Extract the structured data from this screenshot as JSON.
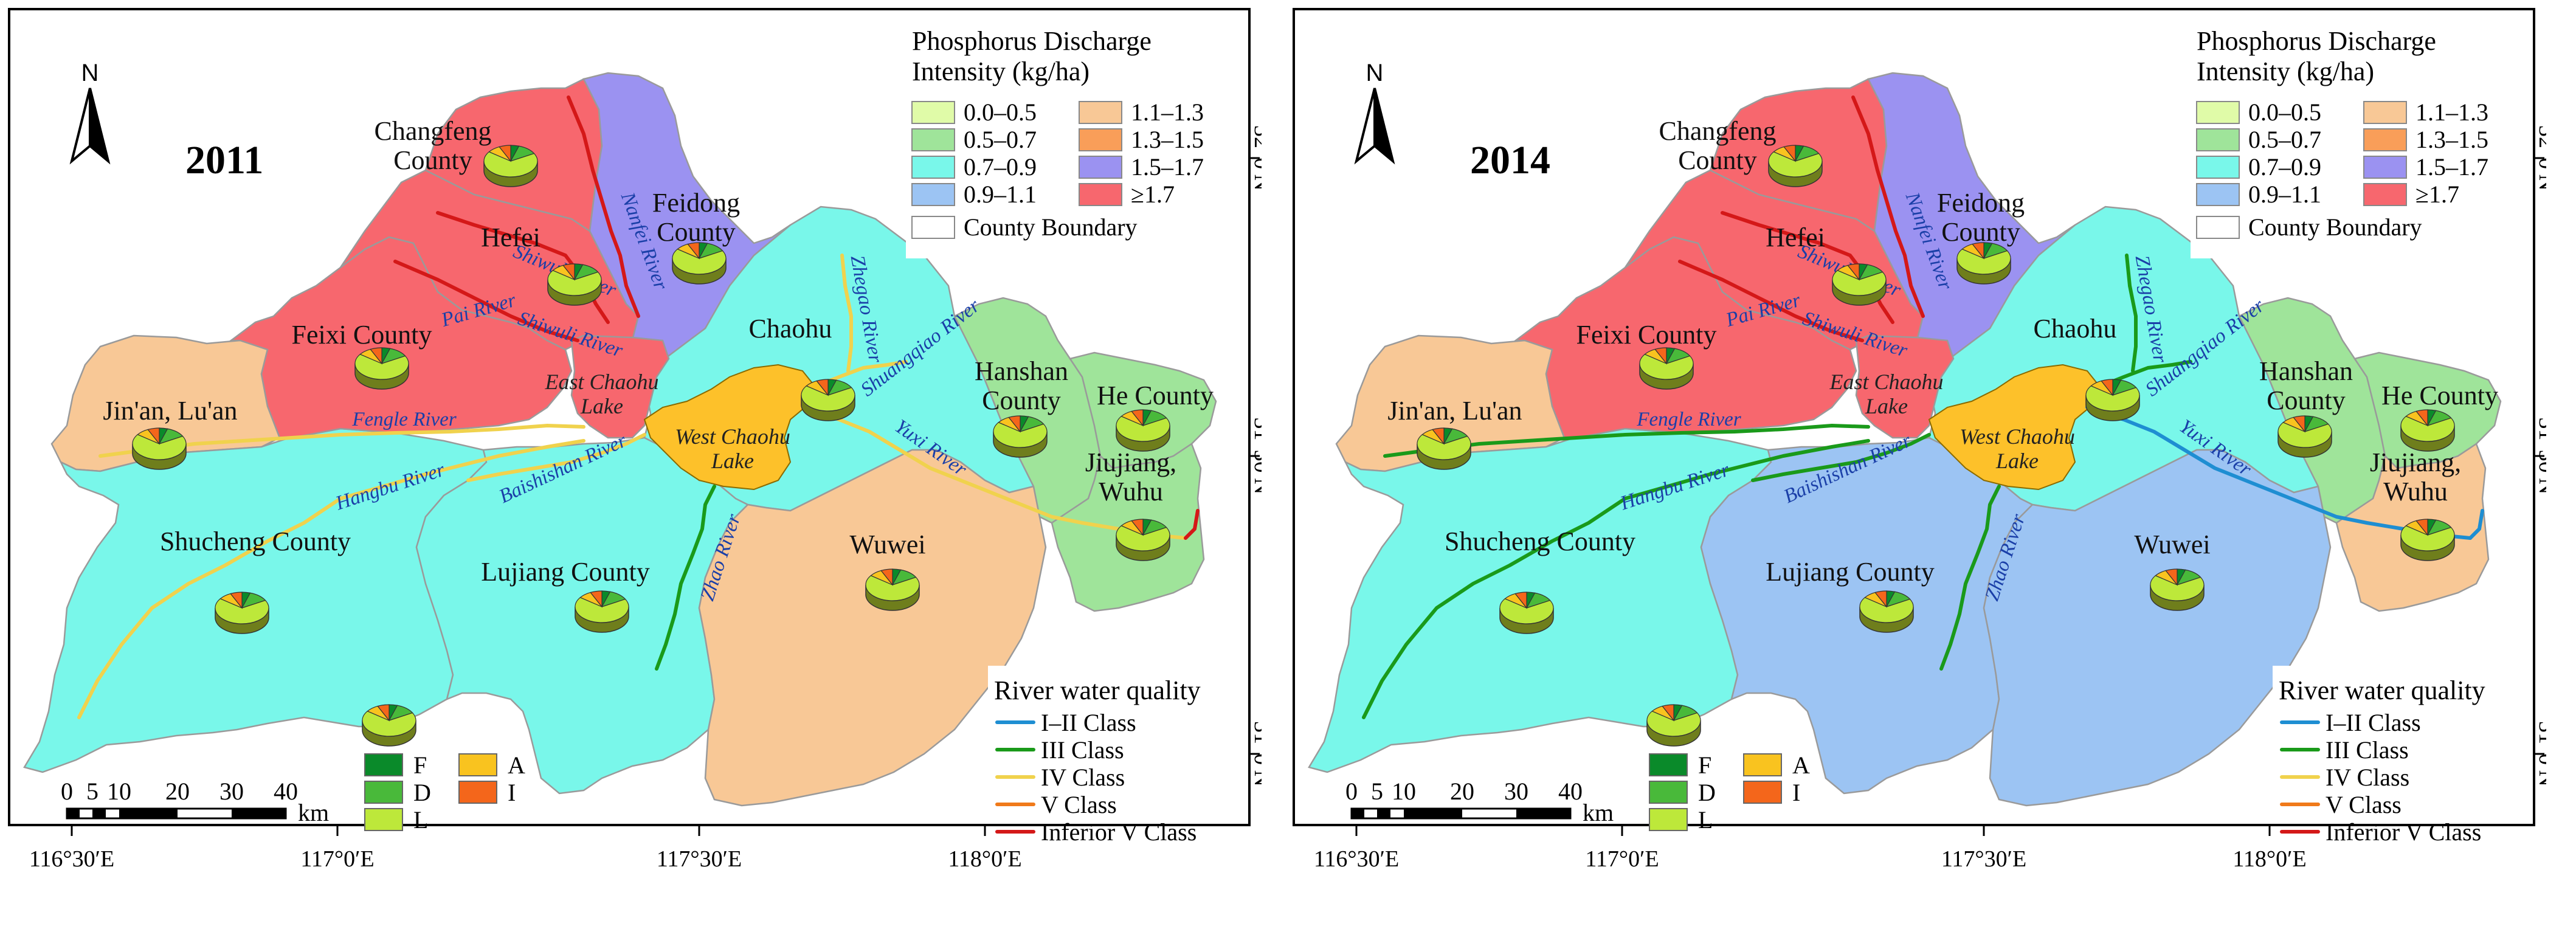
{
  "colors": {
    "c_0_05": "#e0fba8",
    "c_05_07": "#9fe49a",
    "c_07_09": "#79f7ea",
    "c_09_11": "#9cc4f3",
    "c_11_13": "#f8c896",
    "c_13_15": "#f99e59",
    "c_15_17": "#9b92f1",
    "c_ge17": "#f7676e",
    "lake": "#fdc12a",
    "river_12": "#1e8ed2",
    "river_3": "#1a9a1a",
    "river_4": "#f0d24d",
    "river_5": "#f07a1a",
    "river_inf5": "#d41818",
    "pie_F": "#0a8a2a",
    "pie_D": "#49b93a",
    "pie_L": "#bde83a",
    "pie_A": "#f9c31f",
    "pie_I": "#f4661b"
  },
  "north_label": "N",
  "intensity_legend": {
    "title_line1": "Phosphorus Discharge",
    "title_line2": "Intensity  (kg/ha)",
    "items": [
      "0.0–0.5",
      "0.5–0.7",
      "0.7–0.9",
      "0.9–1.1",
      "1.1–1.3",
      "1.3–1.5",
      "1.5–1.7",
      "≥1.7"
    ],
    "boundary_label": "County Boundary"
  },
  "river_legend": {
    "title": "River water quality",
    "items": [
      "I–II  Class",
      "III Class",
      "IV Class",
      "V Class",
      "Inferior V Class"
    ]
  },
  "pie_legend": [
    "F",
    "D",
    "L",
    "A",
    "I"
  ],
  "scale_bar": {
    "ticks": [
      "0",
      "5",
      "10",
      "20",
      "30",
      "40"
    ],
    "unit": "km"
  },
  "axes": {
    "lon": [
      "116°30′E",
      "117°0′E",
      "117°30′E",
      "118°0′E"
    ],
    "lat": [
      "32°0′N",
      "31°30′N",
      "31°0′N"
    ]
  },
  "places": {
    "changfeng_1": "Changfeng",
    "changfeng_2": "County",
    "hefei": "Hefei",
    "feidong_1": "Feidong",
    "feidong_2": "County",
    "feixi": "Feixi County",
    "chaohu": "Chaohu",
    "jinan": "Jin'an, Lu'an",
    "hanshan_1": "Hanshan",
    "hanshan_2": "County",
    "he": "He County",
    "jiujiang_1": "Jiujiang,",
    "jiujiang_2": "Wuhu",
    "shucheng": "Shucheng County",
    "lujiang": "Lujiang County",
    "wuwei": "Wuwei",
    "east_lake_1": "East Chaohu",
    "east_lake_2": "Lake",
    "west_lake_1": "West Chaohu",
    "west_lake_2": "Lake"
  },
  "rivers": {
    "nanfei": "Nanfei River",
    "shiwuli": "Shiwuli River",
    "pai": "Pai River",
    "fengle": "Fengle River",
    "hangbu": "Hangbu River",
    "baishishan": "Baishishan River",
    "zhao": "Zhao River",
    "yuxi": "Yuxi River",
    "shuangqiao": "Shuangqiao River",
    "zhegao": "Zhegao River"
  },
  "panels": [
    {
      "year": "2011",
      "region_classes": {
        "changfeng": "c_ge17",
        "hefei": "c_ge17",
        "feixi": "c_ge17",
        "feidong": "c_15_17",
        "jinan": "c_11_13",
        "shucheng": "c_07_09",
        "lujiang": "c_07_09",
        "chaohu": "c_07_09",
        "wuwei": "c_11_13",
        "hanshan": "c_05_07",
        "he": "c_05_07",
        "jiujiang": "c_05_07",
        "east_lake": "c_ge17"
      },
      "river_classes": {
        "nanfei": "river_inf5",
        "shiwuli": "river_inf5",
        "pai": "river_inf5",
        "fengle": "river_4",
        "hangbu": "river_4",
        "baishishan": "river_4",
        "zhao": "river_3",
        "yuxi": "river_4",
        "shuangqiao": "river_4",
        "zhegao": "river_4",
        "eastern": "river_inf5"
      }
    },
    {
      "year": "2014",
      "region_classes": {
        "changfeng": "c_ge17",
        "hefei": "c_ge17",
        "feixi": "c_ge17",
        "feidong": "c_15_17",
        "jinan": "c_11_13",
        "shucheng": "c_07_09",
        "lujiang": "c_09_11",
        "chaohu": "c_07_09",
        "wuwei": "c_09_11",
        "hanshan": "c_05_07",
        "he": "c_05_07",
        "jiujiang": "c_11_13",
        "east_lake": "c_ge17"
      },
      "river_classes": {
        "nanfei": "river_inf5",
        "shiwuli": "river_inf5",
        "pai": "river_inf5",
        "fengle": "river_3",
        "hangbu": "river_3",
        "baishishan": "river_3",
        "zhao": "river_3",
        "yuxi": "river_12",
        "shuangqiao": "river_3",
        "zhegao": "river_3",
        "eastern": "river_12"
      }
    }
  ]
}
